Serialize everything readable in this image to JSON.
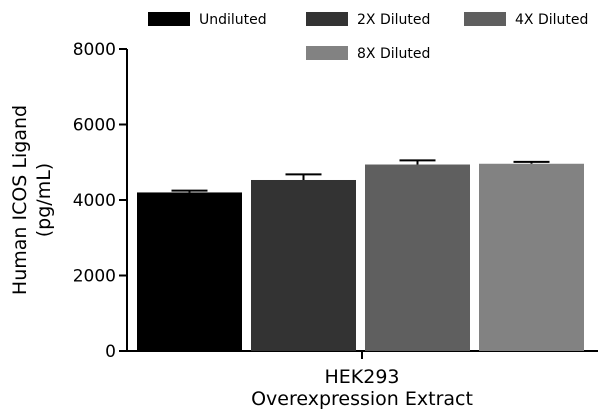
{
  "chart_data": {
    "type": "bar",
    "title": "",
    "xlabel": [
      "HEK293",
      "Overexpression Extract"
    ],
    "ylabel": [
      "Human ICOS Ligand",
      "(pg/mL)"
    ],
    "category": "HEK293",
    "ylim": [
      0,
      8000
    ],
    "yticks": [
      "0",
      "2000",
      "4000",
      "6000",
      "8000"
    ],
    "legend_position": "top",
    "series": [
      {
        "name": "Undiluted",
        "value": 4200,
        "error": 50,
        "color": "#000000"
      },
      {
        "name": "2X Diluted",
        "value": 4530,
        "error": 150,
        "color": "#333333"
      },
      {
        "name": "4X Diluted",
        "value": 4940,
        "error": 110,
        "color": "#5f5f5f"
      },
      {
        "name": "8X Diluted",
        "value": 4960,
        "error": 50,
        "color": "#828282"
      }
    ]
  }
}
